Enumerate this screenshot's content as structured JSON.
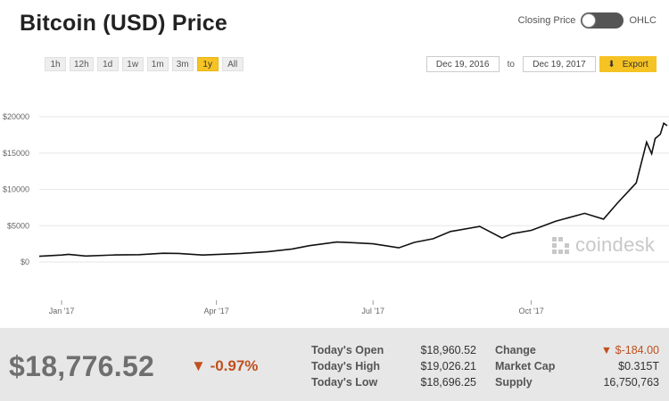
{
  "header": {
    "title": "Bitcoin (USD) Price",
    "toggle_left": "Closing Price",
    "toggle_right": "OHLC"
  },
  "ranges": [
    "1h",
    "12h",
    "1d",
    "1w",
    "1m",
    "3m",
    "1y",
    "All"
  ],
  "active_range": "1y",
  "date_range": {
    "from": "Dec 19, 2016",
    "to_label": "to",
    "to": "Dec 19, 2017",
    "export_label": "Export"
  },
  "watermark": "coindesk",
  "colors": {
    "accent": "#f6c324",
    "negative": "#c0501f",
    "line": "#111111"
  },
  "chart_data": {
    "type": "line",
    "y_ticks": [
      "$0",
      "$5000",
      "$10000",
      "$15000",
      "$20000"
    ],
    "x_ticks": [
      "Jan '17",
      "Apr '17",
      "Jul '17",
      "Oct '17"
    ],
    "ylim": [
      0,
      20000
    ],
    "grid": true,
    "series": [
      {
        "x": [
          "2016-12-19",
          "2017-01-01",
          "2017-01-05",
          "2017-01-15",
          "2017-02-01",
          "2017-02-15",
          "2017-03-01",
          "2017-03-10",
          "2017-03-24",
          "2017-04-15",
          "2017-05-01",
          "2017-05-15",
          "2017-05-25",
          "2017-06-10",
          "2017-06-20",
          "2017-07-01",
          "2017-07-16",
          "2017-07-25",
          "2017-08-05",
          "2017-08-15",
          "2017-09-01",
          "2017-09-14",
          "2017-09-20",
          "2017-10-01",
          "2017-10-15",
          "2017-11-01",
          "2017-11-12",
          "2017-11-20",
          "2017-12-01",
          "2017-12-07",
          "2017-12-10",
          "2017-12-12",
          "2017-12-15",
          "2017-12-17",
          "2017-12-19"
        ],
        "y": [
          790,
          960,
          1050,
          820,
          970,
          1010,
          1200,
          1180,
          960,
          1180,
          1420,
          1790,
          2250,
          2750,
          2650,
          2500,
          1950,
          2700,
          3200,
          4200,
          4900,
          3300,
          3900,
          4350,
          5600,
          6700,
          5900,
          8100,
          10900,
          16500,
          14900,
          17000,
          17600,
          19100,
          18776
        ]
      }
    ]
  },
  "stats": {
    "price": "$18,776.52",
    "change_pct": "-0.97%",
    "labels": [
      "Today's Open",
      "Today's High",
      "Today's Low"
    ],
    "values": [
      "$18,960.52",
      "$19,026.21",
      "$18,696.25"
    ],
    "labels2": [
      "Change",
      "Market Cap",
      "Supply"
    ],
    "change": "$-184.00",
    "market_cap": "$0.315T",
    "supply": "16,750,763"
  }
}
